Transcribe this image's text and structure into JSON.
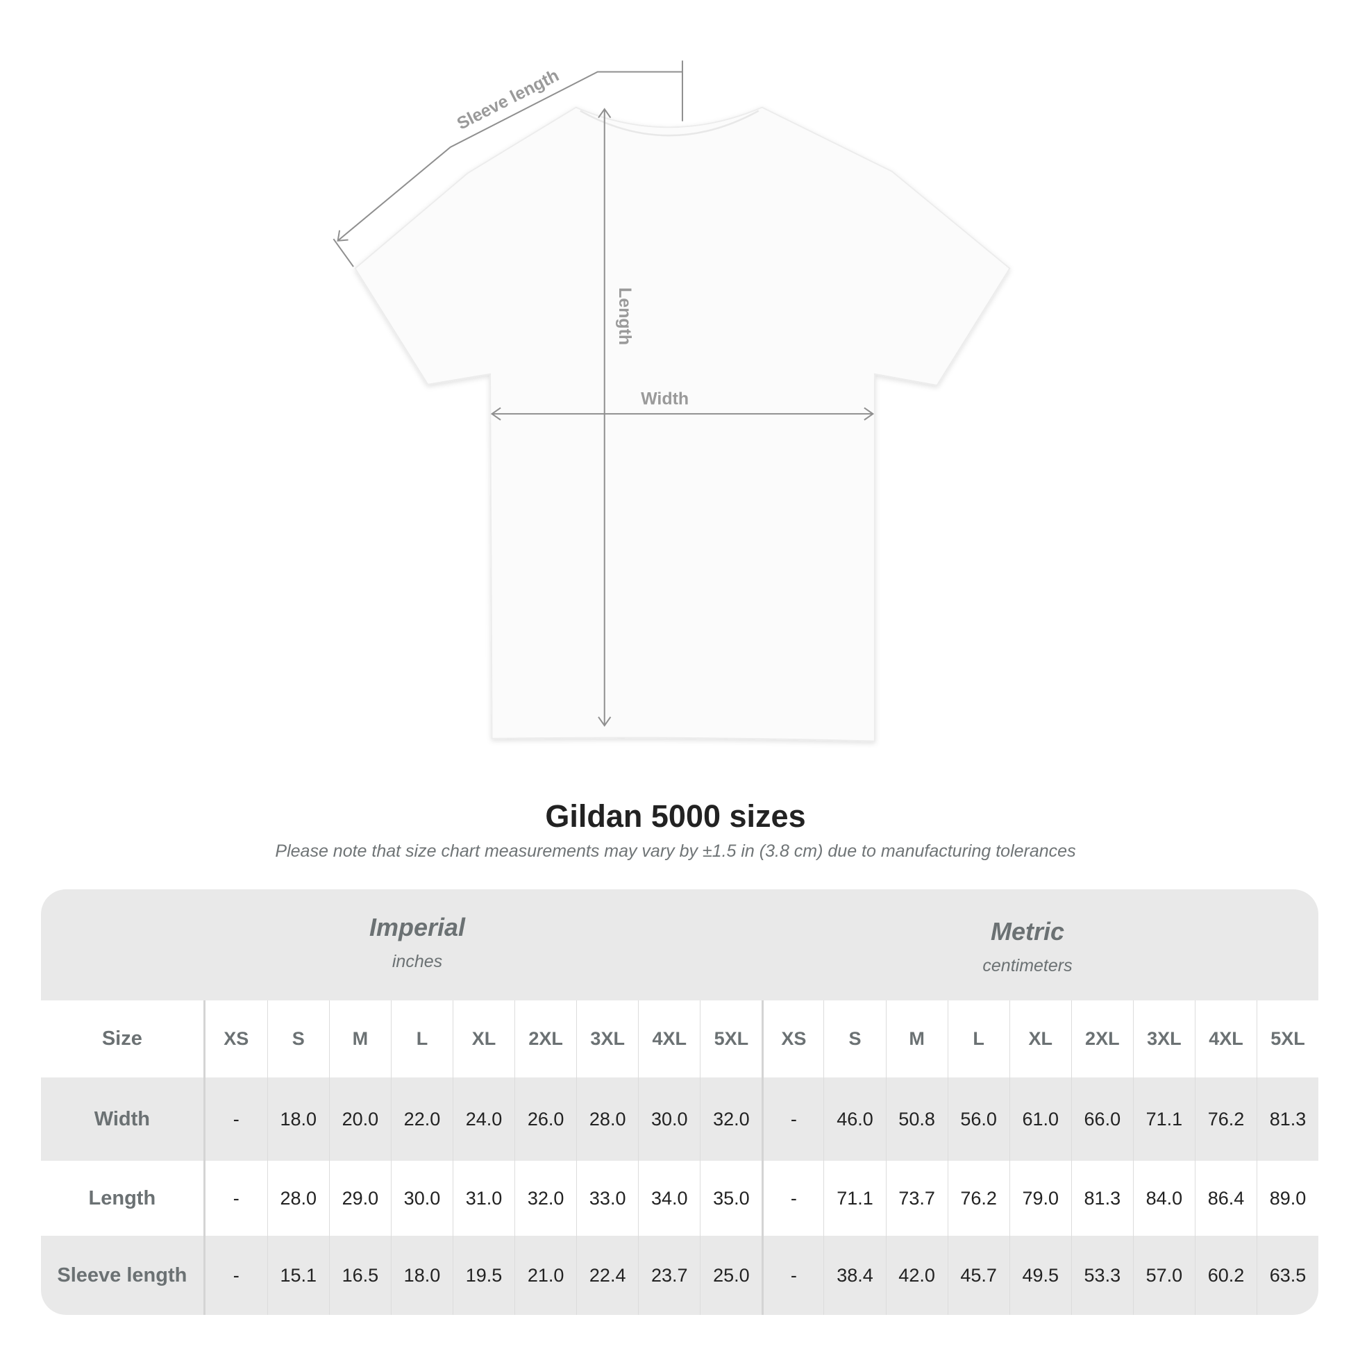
{
  "diagram": {
    "labels": {
      "sleeve": "Sleeve length",
      "length": "Length",
      "width": "Width"
    },
    "line_color": "#8f8f8f"
  },
  "title": "Gildan 5000 sizes",
  "subtitle": "Please note that size chart measurements may vary by ±1.5 in (3.8 cm) due to manufacturing tolerances",
  "table": {
    "imperial": {
      "name": "Imperial",
      "unit": "inches"
    },
    "metric": {
      "name": "Metric",
      "unit": "centimeters"
    },
    "size_label": "Size",
    "sizes": [
      "XS",
      "S",
      "M",
      "L",
      "XL",
      "2XL",
      "3XL",
      "4XL",
      "5XL"
    ],
    "rows": [
      {
        "label": "Width",
        "imperial": [
          "-",
          "18.0",
          "20.0",
          "22.0",
          "24.0",
          "26.0",
          "28.0",
          "30.0",
          "32.0"
        ],
        "metric": [
          "-",
          "46.0",
          "50.8",
          "56.0",
          "61.0",
          "66.0",
          "71.1",
          "76.2",
          "81.3"
        ]
      },
      {
        "label": "Length",
        "imperial": [
          "-",
          "28.0",
          "29.0",
          "30.0",
          "31.0",
          "32.0",
          "33.0",
          "34.0",
          "35.0"
        ],
        "metric": [
          "-",
          "71.1",
          "73.7",
          "76.2",
          "79.0",
          "81.3",
          "84.0",
          "86.4",
          "89.0"
        ]
      },
      {
        "label": "Sleeve length",
        "imperial": [
          "-",
          "15.1",
          "16.5",
          "18.0",
          "19.5",
          "21.0",
          "22.4",
          "23.7",
          "25.0"
        ],
        "metric": [
          "-",
          "38.4",
          "42.0",
          "45.7",
          "49.5",
          "53.3",
          "57.0",
          "60.2",
          "63.5"
        ]
      }
    ],
    "colors": {
      "band": "#e9e9e9",
      "header_text": "#6b7173",
      "value_text": "#222222"
    }
  }
}
